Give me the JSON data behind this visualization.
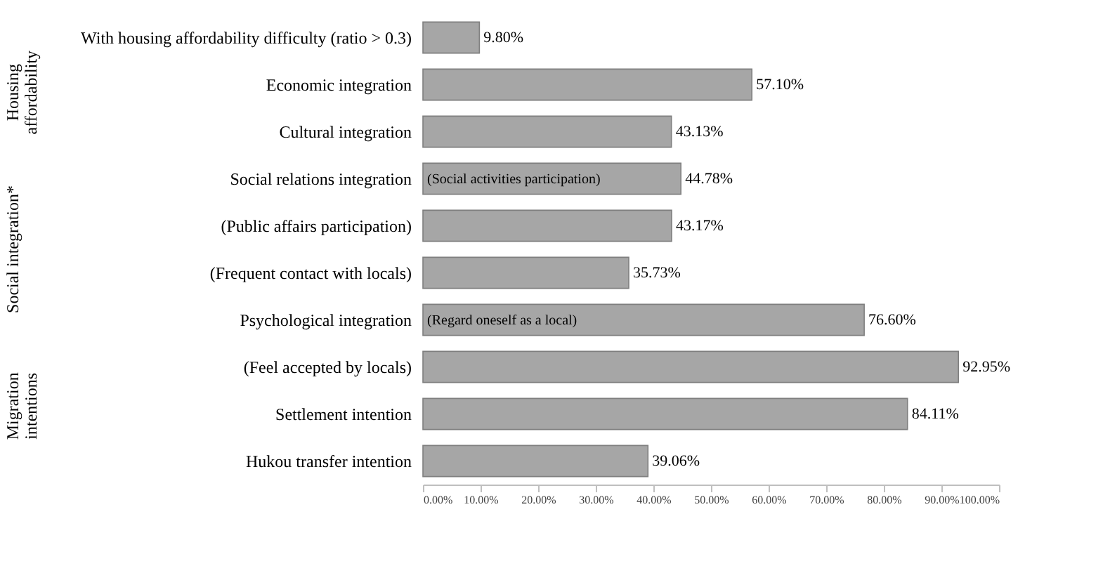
{
  "chart_data": {
    "type": "bar",
    "orientation": "horizontal",
    "categories": [
      "With housing affordability difficulty (ratio > 0.3)",
      "Economic integration",
      "Cultural integration",
      "(Social activities participation)",
      "(Public affairs participation)",
      "(Frequent contact with locals)",
      "(Regard oneself as a local)",
      "(Feel accepted by locals)",
      "Settlement intention",
      "Hukou transfer intention"
    ],
    "values": [
      9.8,
      57.1,
      43.13,
      44.78,
      43.17,
      35.73,
      76.6,
      92.95,
      84.11,
      39.06
    ],
    "value_labels": [
      "9.80%",
      "57.10%",
      "43.13%",
      "44.78%",
      "43.17%",
      "35.73%",
      "76.60%",
      "92.95%",
      "84.11%",
      "39.06%"
    ],
    "color": "#a6a6a6",
    "xlim": [
      0,
      100
    ],
    "xticks": [
      {
        "value": 0,
        "label": "0.00%"
      },
      {
        "value": 10,
        "label": "10.00%"
      },
      {
        "value": 20,
        "label": "20.00%"
      },
      {
        "value": 30,
        "label": "30.00%"
      },
      {
        "value": 40,
        "label": "40.00%"
      },
      {
        "value": 50,
        "label": "50.00%"
      },
      {
        "value": 60,
        "label": "60.00%"
      },
      {
        "value": 70,
        "label": "70.00%"
      },
      {
        "value": 80,
        "label": "80.00%"
      },
      {
        "value": 90,
        "label": "90.00%"
      },
      {
        "value": 100,
        "label": "100.00%"
      }
    ],
    "annotations": [
      {
        "text": "Social relations integration",
        "x": 0,
        "y": "(Social activities participation)"
      },
      {
        "text": "Psychological integration",
        "x": 0,
        "y": "(Regard oneself as a local)"
      },
      "Housing affordability",
      "Social integration*",
      "Migration intentions"
    ]
  }
}
